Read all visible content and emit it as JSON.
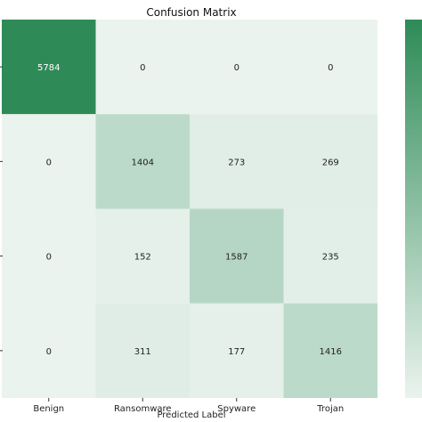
{
  "chart_data": {
    "type": "heatmap",
    "title": "Confusion Matrix",
    "xlabel": "Predicted Label",
    "ylabel": "",
    "x_categories": [
      "Benign",
      "Ransomware",
      "Spyware",
      "Trojan"
    ],
    "y_categories": [
      "",
      "",
      "",
      ""
    ],
    "values": [
      [
        5784,
        0,
        0,
        0
      ],
      [
        0,
        1404,
        273,
        269
      ],
      [
        0,
        152,
        1587,
        235
      ],
      [
        0,
        311,
        177,
        1416
      ]
    ],
    "value_range": [
      0,
      5784
    ],
    "colormap": {
      "low": "#eaf3ee",
      "high": "#2e8b57"
    },
    "colorbar": true,
    "grid": false
  }
}
